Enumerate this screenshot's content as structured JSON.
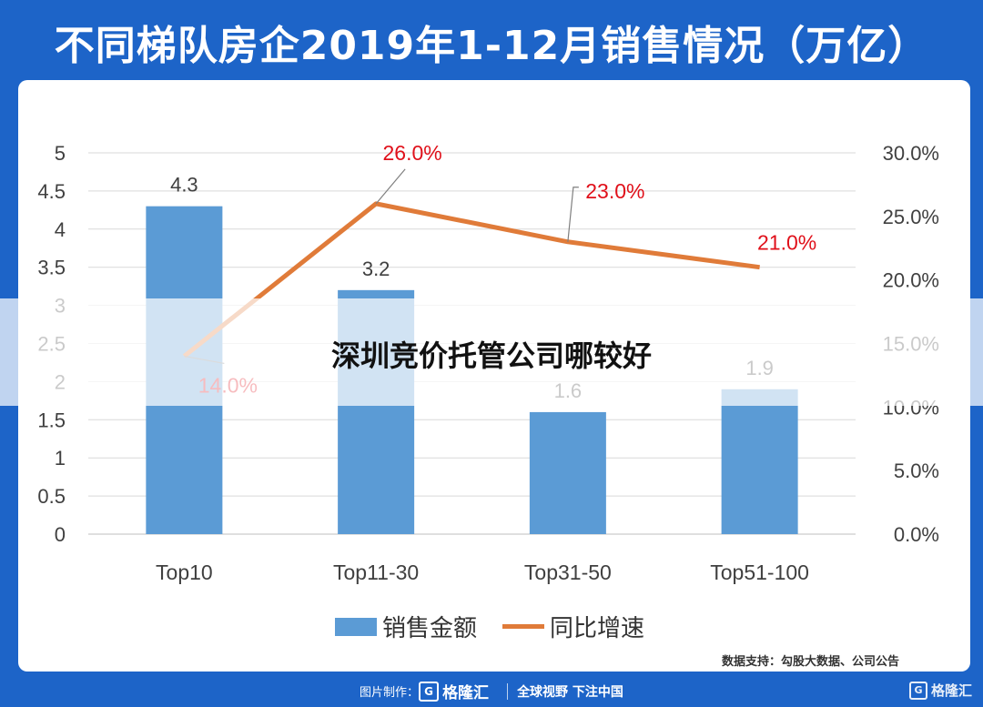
{
  "title": "不同梯队房企2019年1-12月销售情况（万亿）",
  "chart_data": {
    "type": "bar+line",
    "categories": [
      "Top10",
      "Top11-30",
      "Top31-50",
      "Top51-100"
    ],
    "series": [
      {
        "name": "销售金额",
        "type": "bar",
        "axis": "left",
        "values": [
          4.3,
          3.2,
          1.6,
          1.9
        ],
        "labels": [
          "4.3",
          "3.2",
          "1.6",
          "1.9"
        ],
        "color": "#5b9bd5"
      },
      {
        "name": "同比增速",
        "type": "line",
        "axis": "right",
        "values": [
          14.0,
          26.0,
          23.0,
          21.0
        ],
        "labels": [
          "14.0%",
          "26.0%",
          "23.0%",
          "21.0%"
        ],
        "color": "#e07b39",
        "label_color": "#e0101a"
      }
    ],
    "y_left": {
      "min": 0,
      "max": 5,
      "ticks": [
        "0",
        "0.5",
        "1",
        "1.5",
        "2",
        "2.5",
        "3",
        "3.5",
        "4",
        "4.5",
        "5"
      ]
    },
    "y_right": {
      "min": 0,
      "max": 30,
      "ticks": [
        "0.0%",
        "5.0%",
        "10.0%",
        "15.0%",
        "20.0%",
        "25.0%",
        "30.0%"
      ]
    },
    "grid": true,
    "legend_position": "bottom"
  },
  "legend": {
    "bar_label": "销售金额",
    "line_label": "同比增速"
  },
  "source": "数据支持：勾股大数据、公司公告",
  "footer": {
    "made_by": "图片制作：",
    "brand": "格隆汇",
    "slogan": "全球视野 下注中国",
    "logo_glyph": "G"
  },
  "corner_logo": "格隆汇",
  "overlay_text": "深圳竞价托管公司哪较好"
}
